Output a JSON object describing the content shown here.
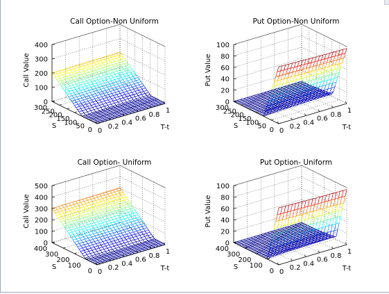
{
  "figure": {
    "background": "#ffffff",
    "colormap": [
      "#00008f",
      "#0000ff",
      "#0080ff",
      "#00ffff",
      "#80ff80",
      "#ffff00",
      "#ff8000",
      "#ff0000",
      "#800000"
    ]
  },
  "chart_data": [
    {
      "type": "surface",
      "title": "Call Option-Non Uniform",
      "xlabel": "T-t",
      "ylabel": "S",
      "zlabel": "Call Value",
      "kind": "call",
      "s_ticks": [
        "300",
        "250",
        "200",
        "150",
        "100",
        "50",
        "0"
      ],
      "s_tick_values": [
        300,
        250,
        200,
        150,
        100,
        50,
        0
      ],
      "s_range": [
        0,
        300
      ],
      "t_ticks": [
        "0",
        "0.2",
        "0.4",
        "0.6",
        "0.8",
        "1"
      ],
      "t_tick_values": [
        0,
        0.2,
        0.4,
        0.6,
        0.8,
        1
      ],
      "t_range": [
        0,
        1
      ],
      "z_ticks": [
        "400",
        "300",
        "200",
        "100",
        "0"
      ],
      "z_tick_values": [
        400,
        300,
        200,
        100,
        0
      ],
      "z_range": [
        0,
        400
      ],
      "strike": 100,
      "max_value": 300,
      "grid": true
    },
    {
      "type": "surface",
      "title": "Put Option-Non Uniform",
      "xlabel": "T-t",
      "ylabel": "S",
      "zlabel": "Put Value",
      "kind": "put",
      "s_ticks": [
        "300",
        "250",
        "200",
        "150",
        "100",
        "50",
        "0"
      ],
      "s_tick_values": [
        300,
        250,
        200,
        150,
        100,
        50,
        0
      ],
      "s_range": [
        0,
        300
      ],
      "t_ticks": [
        "0",
        "0.2",
        "0.4",
        "0.6",
        "0.8",
        "1"
      ],
      "t_tick_values": [
        0,
        0.2,
        0.4,
        0.6,
        0.8,
        1
      ],
      "t_range": [
        0,
        1
      ],
      "z_ticks": [
        "100",
        "80",
        "60",
        "40",
        "20",
        "0"
      ],
      "z_tick_values": [
        100,
        80,
        60,
        40,
        20,
        0
      ],
      "z_range": [
        0,
        100
      ],
      "strike": 100,
      "max_value": 100,
      "grid": true
    },
    {
      "type": "surface",
      "title": "Call Option- Uniform",
      "xlabel": "T-t",
      "ylabel": "S",
      "zlabel": "Call Value",
      "kind": "call",
      "s_ticks": [
        "400",
        "300",
        "200",
        "100",
        "0"
      ],
      "s_tick_values": [
        400,
        300,
        200,
        100,
        0
      ],
      "s_range": [
        0,
        400
      ],
      "t_ticks": [
        "0",
        "0.2",
        "0.4",
        "0.6",
        "0.8",
        "1"
      ],
      "t_tick_values": [
        0,
        0.2,
        0.4,
        0.6,
        0.8,
        1
      ],
      "t_range": [
        0,
        1
      ],
      "z_ticks": [
        "500",
        "400",
        "300",
        "200",
        "100",
        "0"
      ],
      "z_tick_values": [
        500,
        400,
        300,
        200,
        100,
        0
      ],
      "z_range": [
        0,
        500
      ],
      "strike": 100,
      "max_value": 400,
      "grid": true
    },
    {
      "type": "surface",
      "title": "Put Option- Uniform",
      "xlabel": "T-t",
      "ylabel": "S",
      "zlabel": "Put Value",
      "kind": "put",
      "s_ticks": [
        "400",
        "300",
        "200",
        "100",
        "0"
      ],
      "s_tick_values": [
        400,
        300,
        200,
        100,
        0
      ],
      "s_range": [
        0,
        400
      ],
      "t_ticks": [
        "0",
        "0.2",
        "0.4",
        "0.6",
        "0.8",
        "1"
      ],
      "t_tick_values": [
        0,
        0.2,
        0.4,
        0.6,
        0.8,
        1
      ],
      "t_range": [
        0,
        1
      ],
      "z_ticks": [
        "100",
        "80",
        "60",
        "40",
        "20",
        "0"
      ],
      "z_tick_values": [
        100,
        80,
        60,
        40,
        20,
        0
      ],
      "z_range": [
        0,
        100
      ],
      "strike": 100,
      "max_value": 100,
      "grid": true
    }
  ]
}
